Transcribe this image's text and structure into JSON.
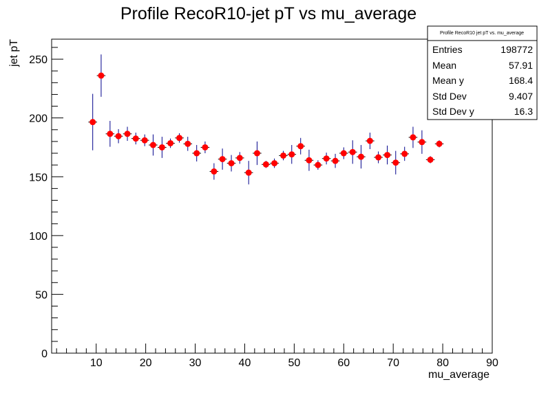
{
  "chart_data": {
    "type": "scatter",
    "title": "Profile RecoR10-jet pT vs mu_average",
    "xlabel": "mu_average",
    "ylabel": "jet pT",
    "xlim": [
      1,
      90
    ],
    "ylim": [
      0,
      267
    ],
    "x_ticks": [
      10,
      20,
      30,
      40,
      50,
      60,
      70,
      80,
      90
    ],
    "y_ticks": [
      0,
      50,
      100,
      150,
      200,
      250
    ],
    "grid": false,
    "marker_color": "#ff0000",
    "error_bar_color": "#00008b",
    "series": [
      {
        "points": [
          {
            "x": 9.3,
            "y": 196.5,
            "err": 24
          },
          {
            "x": 11.0,
            "y": 236.0,
            "err": 18
          },
          {
            "x": 12.8,
            "y": 186.5,
            "err": 11
          },
          {
            "x": 14.5,
            "y": 184.5,
            "err": 6
          },
          {
            "x": 16.3,
            "y": 186.5,
            "err": 6
          },
          {
            "x": 18.0,
            "y": 182.5,
            "err": 5
          },
          {
            "x": 19.8,
            "y": 181.0,
            "err": 5
          },
          {
            "x": 21.5,
            "y": 177.0,
            "err": 9
          },
          {
            "x": 23.3,
            "y": 175.0,
            "err": 9
          },
          {
            "x": 25.0,
            "y": 178.5,
            "err": 4
          },
          {
            "x": 26.8,
            "y": 183.0,
            "err": 4
          },
          {
            "x": 28.5,
            "y": 178.0,
            "err": 6
          },
          {
            "x": 30.3,
            "y": 170.0,
            "err": 7
          },
          {
            "x": 32.0,
            "y": 175.0,
            "err": 5
          },
          {
            "x": 33.8,
            "y": 154.5,
            "err": 7
          },
          {
            "x": 35.5,
            "y": 165.0,
            "err": 9
          },
          {
            "x": 37.3,
            "y": 161.5,
            "err": 7
          },
          {
            "x": 39.0,
            "y": 166.0,
            "err": 5
          },
          {
            "x": 40.8,
            "y": 153.5,
            "err": 10
          },
          {
            "x": 42.5,
            "y": 170.0,
            "err": 10
          },
          {
            "x": 44.3,
            "y": 160.5,
            "err": 3
          },
          {
            "x": 46.0,
            "y": 161.5,
            "err": 4
          },
          {
            "x": 47.8,
            "y": 168.0,
            "err": 4
          },
          {
            "x": 49.5,
            "y": 169.0,
            "err": 8
          },
          {
            "x": 51.3,
            "y": 176.0,
            "err": 7
          },
          {
            "x": 53.0,
            "y": 164.0,
            "err": 9
          },
          {
            "x": 54.8,
            "y": 160.0,
            "err": 4
          },
          {
            "x": 56.5,
            "y": 165.5,
            "err": 5
          },
          {
            "x": 58.3,
            "y": 163.5,
            "err": 6
          },
          {
            "x": 60.0,
            "y": 170.0,
            "err": 5
          },
          {
            "x": 61.8,
            "y": 171.0,
            "err": 10
          },
          {
            "x": 63.5,
            "y": 167.0,
            "err": 10
          },
          {
            "x": 65.3,
            "y": 180.5,
            "err": 7
          },
          {
            "x": 67.0,
            "y": 166.5,
            "err": 5
          },
          {
            "x": 68.8,
            "y": 168.5,
            "err": 8
          },
          {
            "x": 70.5,
            "y": 162.0,
            "err": 10
          },
          {
            "x": 72.3,
            "y": 169.5,
            "err": 6
          },
          {
            "x": 74.0,
            "y": 183.5,
            "err": 9
          },
          {
            "x": 75.8,
            "y": 179.5,
            "err": 10
          },
          {
            "x": 77.5,
            "y": 164.5,
            "err": 3
          },
          {
            "x": 79.3,
            "y": 178.0,
            "err": 3
          }
        ]
      }
    ]
  },
  "stats_box": {
    "title": "Profile RecoR10 jet pT vs. mu_average",
    "rows": [
      {
        "label": "Entries",
        "value": "198772"
      },
      {
        "label": "Mean",
        "value": "57.91"
      },
      {
        "label": "Mean y",
        "value": "168.4"
      },
      {
        "label": "Std Dev",
        "value": "9.407"
      },
      {
        "label": "Std Dev y",
        "value": "16.3"
      }
    ]
  }
}
